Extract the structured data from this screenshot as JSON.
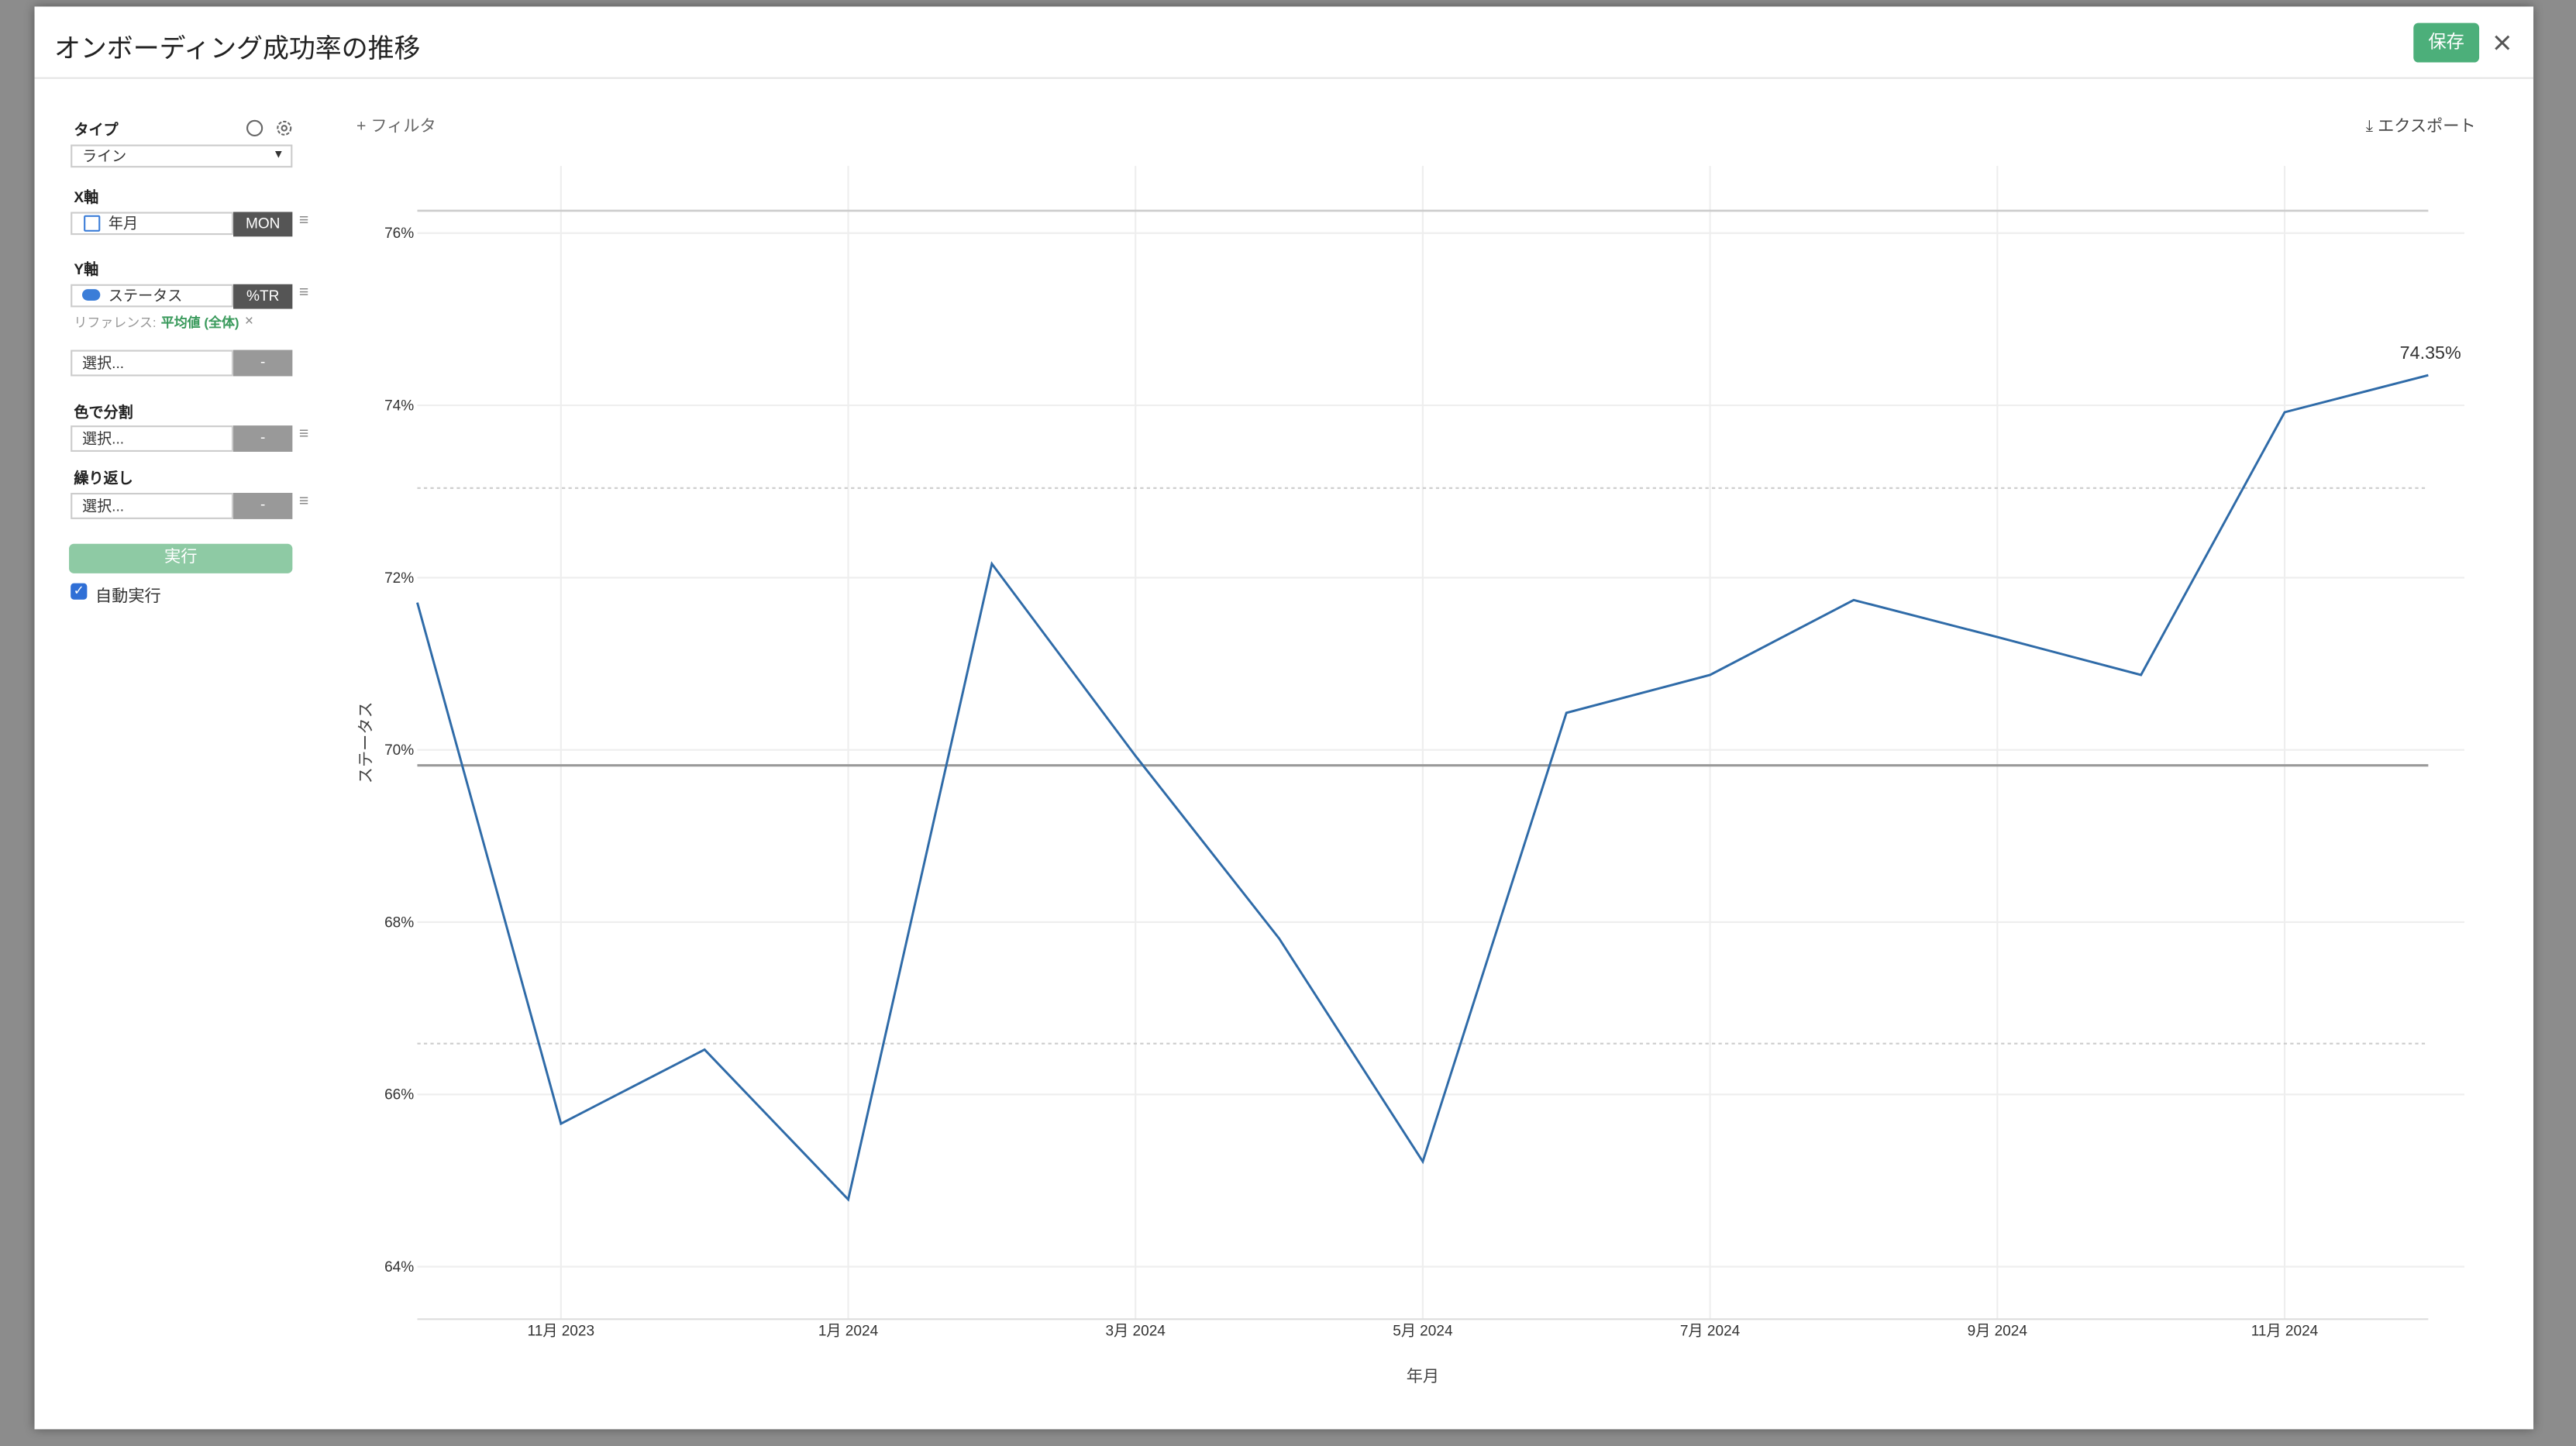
{
  "ui": {
    "title": "オンボーディング成功率の推移",
    "save": "保存",
    "filter": "フィルタ",
    "export": "エクスポート",
    "sidebar": {
      "type_label": "タイプ",
      "type_value": "ライン",
      "x_label": "X軸",
      "x_field": "年月",
      "x_unit": "MON",
      "y_label": "Y軸",
      "y_field": "ステータス",
      "y_agg": "%TR",
      "reference_label": "リファレンス:",
      "reference_value": "平均値 (全体)",
      "y2_placeholder": "選択...",
      "y2_agg": "-",
      "color_label": "色で分割",
      "color_placeholder": "選択...",
      "color_agg": "-",
      "repeat_label": "繰り返し",
      "repeat_placeholder": "選択...",
      "repeat_agg": "-",
      "run": "実行",
      "auto_run": "自動実行"
    }
  },
  "chart_data": {
    "type": "line",
    "x_label": "年月",
    "y_label": "ステータス",
    "color": "#2f6ba8",
    "categories": [
      null,
      "11月 2023",
      null,
      "1月 2024",
      null,
      "3月 2024",
      null,
      "5月 2024",
      null,
      "7月 2024",
      null,
      "9月 2024",
      null,
      "11月 2024",
      null
    ],
    "values": [
      71.71,
      65.66,
      66.52,
      64.78,
      72.16,
      69.93,
      67.81,
      65.22,
      70.43,
      70.87,
      71.74,
      71.31,
      70.87,
      73.92,
      74.35
    ],
    "value_labels": [
      null,
      null,
      null,
      null,
      null,
      null,
      null,
      null,
      null,
      null,
      null,
      null,
      null,
      null,
      "74.35%"
    ],
    "ylim": [
      63.39,
      76.78
    ],
    "yticks": [
      {
        "value": 64,
        "label": "64%"
      },
      {
        "value": 66,
        "label": "66%"
      },
      {
        "value": 68,
        "label": "68%"
      },
      {
        "value": 70,
        "label": "70%"
      },
      {
        "value": 72,
        "label": "72%"
      },
      {
        "value": 74,
        "label": "74%"
      },
      {
        "value": 76,
        "label": "76%"
      }
    ],
    "reference": {
      "mean": 69.82,
      "dotted": [
        73.04,
        66.59
      ],
      "outer": [
        76.26
      ]
    },
    "grid": true
  }
}
